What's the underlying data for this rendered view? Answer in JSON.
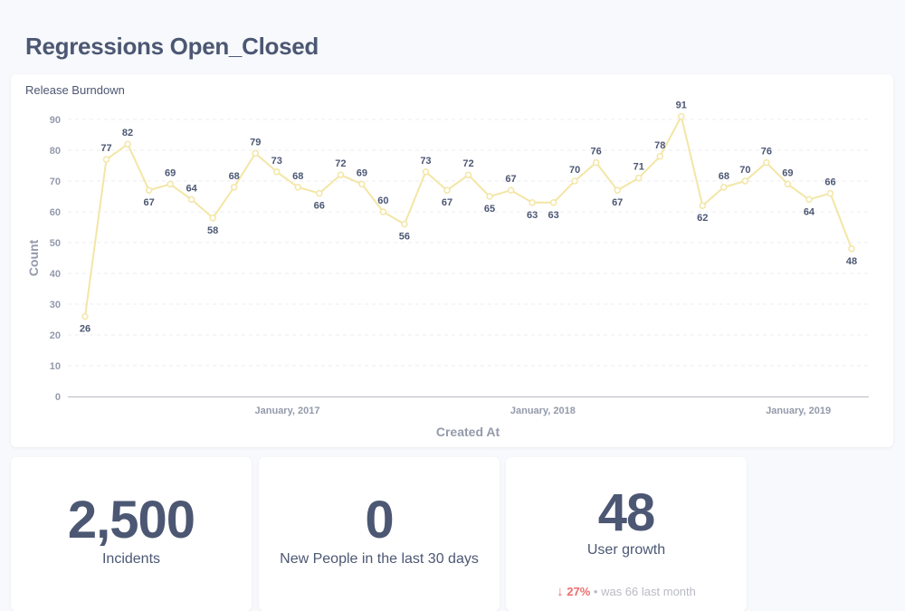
{
  "page": {
    "title": "Regressions Open_Closed"
  },
  "chart_card": {
    "title": "Release Burndown"
  },
  "chart_data": {
    "type": "line",
    "title": "Release Burndown",
    "xlabel": "Created At",
    "ylabel": "Count",
    "ylim": [
      0,
      90
    ],
    "yticks": [
      "0",
      "10",
      "20",
      "30",
      "40",
      "50",
      "60",
      "70",
      "80",
      "90"
    ],
    "xticks": [
      "January, 2017",
      "January, 2018",
      "January, 2019"
    ],
    "grid": true,
    "line_color": "#f3e6a5",
    "values": [
      26,
      77,
      82,
      67,
      69,
      64,
      58,
      68,
      79,
      73,
      68,
      66,
      72,
      69,
      60,
      56,
      73,
      67,
      72,
      65,
      67,
      63,
      63,
      70,
      76,
      67,
      71,
      78,
      91,
      62,
      68,
      70,
      76,
      69,
      64,
      66,
      48
    ]
  },
  "stats": [
    {
      "value": "2,500",
      "label": "Incidents"
    },
    {
      "value": "0",
      "label": "New People in the last 30 days"
    },
    {
      "value": "48",
      "label": "User growth",
      "trend": {
        "arrow": "↓",
        "pct": "27%",
        "sep": "•",
        "prev": "was 66",
        "period": "last month"
      }
    }
  ],
  "colors": {
    "text": "#4c5773",
    "muted": "#949aab",
    "negative": "#ed6e6e",
    "line": "#f3e6a5"
  }
}
